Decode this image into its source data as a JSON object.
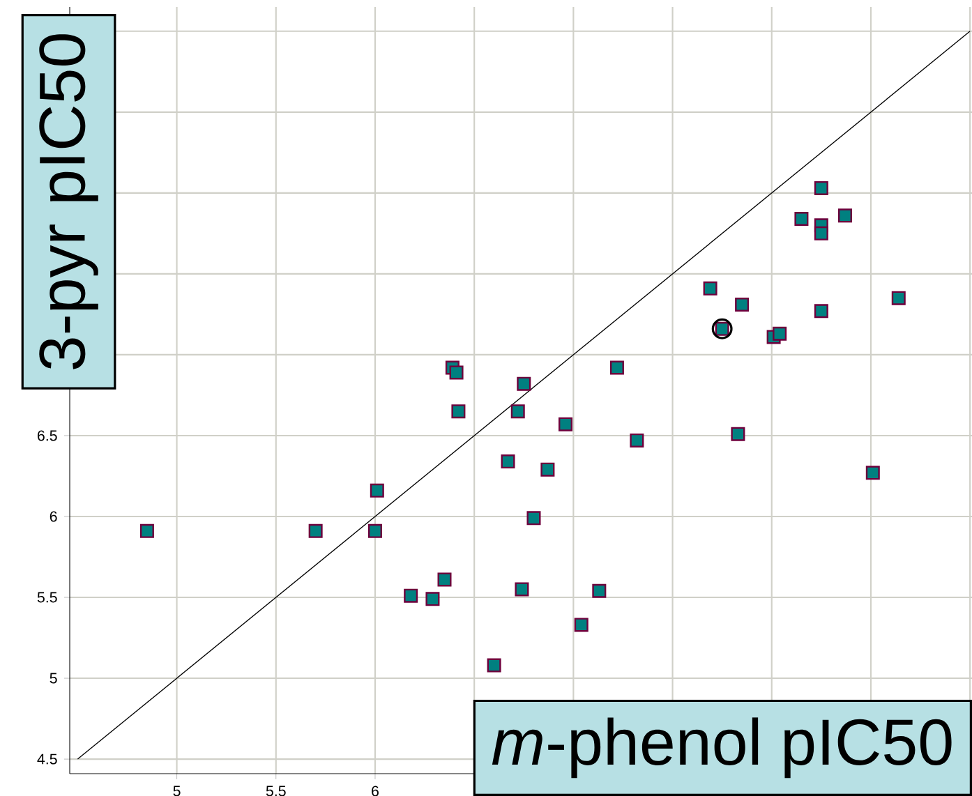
{
  "chart_data": {
    "type": "scatter",
    "xlabel": "*m*-phenol pIC50",
    "ylabel": "3-pyr pIC50",
    "xlim": [
      4.46,
      9.01
    ],
    "ylim": [
      4.41,
      9.15
    ],
    "xticks": [
      5,
      5.5,
      6,
      {
        "value": 6.5,
        "label": null
      },
      {
        "value": 7,
        "label": null
      },
      {
        "value": 7.5,
        "label": null
      },
      {
        "value": 8,
        "label": null
      },
      {
        "value": 8.5,
        "label": null
      },
      {
        "value": 9,
        "label": null
      }
    ],
    "yticks": [
      4.5,
      5,
      5.5,
      6,
      6.5,
      {
        "value": 7,
        "label": null
      },
      {
        "value": 7.5,
        "label": null
      },
      {
        "value": 8,
        "label": null
      },
      {
        "value": 8.5,
        "label": null
      },
      {
        "value": 9,
        "label": null
      }
    ],
    "grid": true,
    "series": [
      {
        "marker": "square",
        "color": "#008080",
        "x": [
          4.85,
          5.7,
          6.01,
          6.0,
          6.18,
          6.29,
          6.35,
          6.6,
          6.74,
          7.04,
          7.13,
          6.8,
          6.67,
          6.87,
          6.96,
          7.32,
          6.72,
          6.42,
          6.39,
          6.41,
          6.75,
          7.22,
          7.69,
          7.75,
          7.85,
          7.83,
          8.01,
          8.04,
          8.25,
          8.15,
          8.25,
          8.25,
          8.25,
          8.37,
          8.64,
          8.51
        ],
        "values": [
          5.91,
          5.91,
          6.16,
          5.91,
          5.51,
          5.49,
          5.61,
          5.08,
          5.55,
          5.33,
          5.54,
          5.99,
          6.34,
          6.29,
          6.57,
          6.47,
          6.65,
          6.65,
          6.92,
          6.89,
          6.82,
          6.92,
          7.41,
          7.16,
          7.31,
          6.51,
          7.11,
          7.13,
          7.27,
          7.84,
          8.03,
          7.8,
          7.75,
          7.86,
          7.35,
          6.27
        ]
      },
      {
        "marker": "circle",
        "color": "#000000",
        "x": [
          7.75
        ],
        "values": [
          7.16
        ]
      },
      {
        "type": "line",
        "marker": "none",
        "line_style": "solid",
        "color": "#000000",
        "x": [
          4.5,
          9.0
        ],
        "values": [
          4.5,
          9.0
        ]
      }
    ]
  }
}
